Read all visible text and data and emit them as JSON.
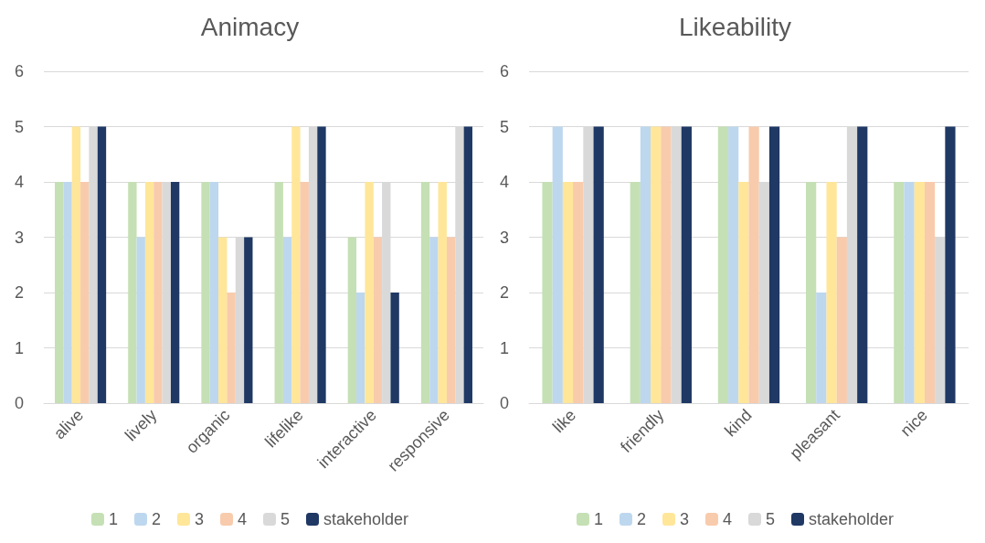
{
  "chart_data": [
    {
      "type": "bar",
      "title": "Animacy",
      "categories": [
        "alive",
        "lively",
        "organic",
        "lifelike",
        "interactive",
        "responsive"
      ],
      "series": [
        {
          "name": "1",
          "color": "#c5e0b4",
          "values": [
            4,
            4,
            4,
            4,
            3,
            4
          ]
        },
        {
          "name": "2",
          "color": "#bdd7ee",
          "values": [
            4,
            3,
            4,
            3,
            2,
            3
          ]
        },
        {
          "name": "3",
          "color": "#ffe699",
          "values": [
            5,
            4,
            3,
            5,
            4,
            4
          ]
        },
        {
          "name": "4",
          "color": "#f8cbad",
          "values": [
            4,
            4,
            2,
            4,
            3,
            3
          ]
        },
        {
          "name": "5",
          "color": "#d9d9d9",
          "values": [
            5,
            4,
            3,
            5,
            4,
            5
          ]
        },
        {
          "name": "stakeholder",
          "color": "#1f3864",
          "values": [
            5,
            4,
            3,
            5,
            2,
            5
          ]
        }
      ],
      "ylim": [
        0,
        6
      ],
      "yticks": [
        0,
        1,
        2,
        3,
        4,
        5,
        6
      ],
      "grid": "y",
      "legend": "bottom"
    },
    {
      "type": "bar",
      "title": "Likeability",
      "categories": [
        "like",
        "friendly",
        "kind",
        "pleasant",
        "nice"
      ],
      "series": [
        {
          "name": "1",
          "color": "#c5e0b4",
          "values": [
            4,
            4,
            5,
            4,
            4
          ]
        },
        {
          "name": "2",
          "color": "#bdd7ee",
          "values": [
            5,
            5,
            5,
            2,
            4
          ]
        },
        {
          "name": "3",
          "color": "#ffe699",
          "values": [
            4,
            5,
            4,
            4,
            4
          ]
        },
        {
          "name": "4",
          "color": "#f8cbad",
          "values": [
            4,
            5,
            5,
            3,
            4
          ]
        },
        {
          "name": "5",
          "color": "#d9d9d9",
          "values": [
            5,
            5,
            4,
            5,
            3
          ]
        },
        {
          "name": "stakeholder",
          "color": "#1f3864",
          "values": [
            5,
            5,
            5,
            5,
            5
          ]
        }
      ],
      "ylim": [
        0,
        6
      ],
      "yticks": [
        0,
        1,
        2,
        3,
        4,
        5,
        6
      ],
      "grid": "y",
      "legend": "bottom"
    }
  ]
}
